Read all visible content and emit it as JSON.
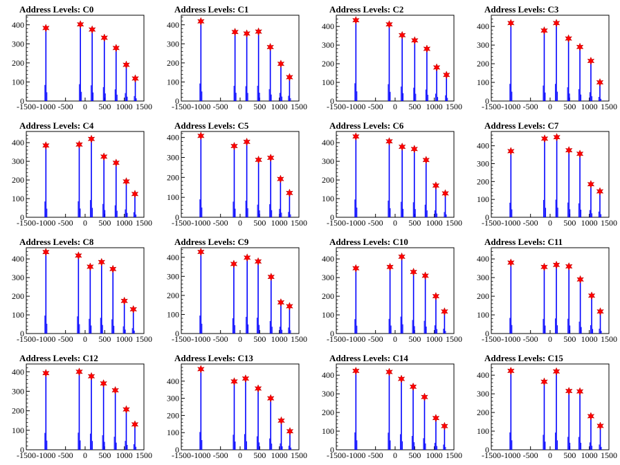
{
  "figure": {
    "title_prefix": "Address Levels: ",
    "x_ticks": [
      -1500,
      -1000,
      -500,
      0,
      500,
      1000,
      1500
    ],
    "x_tick_labels": [
      "-1500",
      "-1000",
      "-500",
      "0",
      "500",
      "1000",
      "1500"
    ],
    "colors": {
      "hist": "#0000ff",
      "peak_marker": "#ff0000",
      "axes": "#000000"
    }
  },
  "chart_data": [
    {
      "type": "histogram",
      "title": "Address Levels: C0",
      "xlim": [
        -1500,
        1500
      ],
      "ylim": [
        0,
        450
      ],
      "y_ticks": [
        0,
        100,
        200,
        300,
        400
      ],
      "peaks": [
        {
          "x": -1000,
          "y": 383
        },
        {
          "x": -120,
          "y": 402
        },
        {
          "x": 180,
          "y": 375
        },
        {
          "x": 490,
          "y": 332
        },
        {
          "x": 790,
          "y": 278
        },
        {
          "x": 1050,
          "y": 190
        },
        {
          "x": 1280,
          "y": 118
        }
      ]
    },
    {
      "type": "histogram",
      "title": "Address Levels: C1",
      "xlim": [
        -1500,
        1500
      ],
      "ylim": [
        0,
        450
      ],
      "y_ticks": [
        0,
        100,
        200,
        300,
        400
      ],
      "peaks": [
        {
          "x": -1000,
          "y": 418
        },
        {
          "x": -130,
          "y": 362
        },
        {
          "x": 170,
          "y": 354
        },
        {
          "x": 470,
          "y": 364
        },
        {
          "x": 770,
          "y": 283
        },
        {
          "x": 1040,
          "y": 195
        },
        {
          "x": 1260,
          "y": 125
        }
      ]
    },
    {
      "type": "histogram",
      "title": "Address Levels: C2",
      "xlim": [
        -1500,
        1500
      ],
      "ylim": [
        0,
        460
      ],
      "y_ticks": [
        0,
        100,
        200,
        300,
        400
      ],
      "peaks": [
        {
          "x": -1000,
          "y": 433
        },
        {
          "x": -150,
          "y": 411
        },
        {
          "x": 180,
          "y": 353
        },
        {
          "x": 500,
          "y": 325
        },
        {
          "x": 810,
          "y": 280
        },
        {
          "x": 1060,
          "y": 180
        },
        {
          "x": 1310,
          "y": 140
        }
      ]
    },
    {
      "type": "histogram",
      "title": "Address Levels: C3",
      "xlim": [
        -1500,
        1500
      ],
      "ylim": [
        0,
        460
      ],
      "y_ticks": [
        0,
        100,
        200,
        300,
        400
      ],
      "peaks": [
        {
          "x": -1000,
          "y": 418
        },
        {
          "x": -150,
          "y": 378
        },
        {
          "x": 160,
          "y": 418
        },
        {
          "x": 470,
          "y": 335
        },
        {
          "x": 760,
          "y": 290
        },
        {
          "x": 1040,
          "y": 215
        },
        {
          "x": 1270,
          "y": 100
        }
      ]
    },
    {
      "type": "histogram",
      "title": "Address Levels: C4",
      "xlim": [
        -1500,
        1500
      ],
      "ylim": [
        0,
        460
      ],
      "y_ticks": [
        0,
        100,
        200,
        300,
        400
      ],
      "peaks": [
        {
          "x": -1000,
          "y": 385
        },
        {
          "x": -150,
          "y": 390
        },
        {
          "x": 160,
          "y": 420
        },
        {
          "x": 480,
          "y": 325
        },
        {
          "x": 790,
          "y": 292
        },
        {
          "x": 1050,
          "y": 192
        },
        {
          "x": 1270,
          "y": 125
        }
      ]
    },
    {
      "type": "histogram",
      "title": "Address Levels: C5",
      "xlim": [
        -1500,
        1500
      ],
      "ylim": [
        0,
        430
      ],
      "y_ticks": [
        0,
        100,
        200,
        300,
        400
      ],
      "peaks": [
        {
          "x": -1000,
          "y": 408
        },
        {
          "x": -150,
          "y": 357
        },
        {
          "x": 170,
          "y": 378
        },
        {
          "x": 470,
          "y": 288
        },
        {
          "x": 780,
          "y": 298
        },
        {
          "x": 1030,
          "y": 192
        },
        {
          "x": 1260,
          "y": 122
        }
      ]
    },
    {
      "type": "histogram",
      "title": "Address Levels: C6",
      "xlim": [
        -1500,
        1500
      ],
      "ylim": [
        0,
        460
      ],
      "y_ticks": [
        0,
        100,
        200,
        300,
        400
      ],
      "peaks": [
        {
          "x": -1000,
          "y": 433
        },
        {
          "x": -150,
          "y": 407
        },
        {
          "x": 180,
          "y": 378
        },
        {
          "x": 490,
          "y": 366
        },
        {
          "x": 790,
          "y": 307
        },
        {
          "x": 1040,
          "y": 170
        },
        {
          "x": 1280,
          "y": 128
        }
      ]
    },
    {
      "type": "histogram",
      "title": "Address Levels: C7",
      "xlim": [
        -1500,
        1500
      ],
      "ylim": [
        0,
        480
      ],
      "y_ticks": [
        0,
        100,
        200,
        300,
        400
      ],
      "peaks": [
        {
          "x": -1000,
          "y": 370
        },
        {
          "x": -140,
          "y": 440
        },
        {
          "x": 170,
          "y": 448
        },
        {
          "x": 480,
          "y": 375
        },
        {
          "x": 760,
          "y": 355
        },
        {
          "x": 1040,
          "y": 185
        },
        {
          "x": 1270,
          "y": 145
        }
      ]
    },
    {
      "type": "histogram",
      "title": "Address Levels: C8",
      "xlim": [
        -1500,
        1500
      ],
      "ylim": [
        0,
        460
      ],
      "y_ticks": [
        0,
        100,
        200,
        300,
        400
      ],
      "peaks": [
        {
          "x": -1000,
          "y": 437
        },
        {
          "x": -170,
          "y": 418
        },
        {
          "x": 130,
          "y": 358
        },
        {
          "x": 420,
          "y": 383
        },
        {
          "x": 710,
          "y": 346
        },
        {
          "x": 1000,
          "y": 175
        },
        {
          "x": 1230,
          "y": 130
        }
      ]
    },
    {
      "type": "histogram",
      "title": "Address Levels: C9",
      "xlim": [
        -1500,
        1500
      ],
      "ylim": [
        0,
        450
      ],
      "y_ticks": [
        0,
        100,
        200,
        300,
        400
      ],
      "peaks": [
        {
          "x": -1000,
          "y": 428
        },
        {
          "x": -160,
          "y": 365
        },
        {
          "x": 180,
          "y": 398
        },
        {
          "x": 460,
          "y": 378
        },
        {
          "x": 790,
          "y": 297
        },
        {
          "x": 1040,
          "y": 163
        },
        {
          "x": 1260,
          "y": 143
        }
      ]
    },
    {
      "type": "histogram",
      "title": "Address Levels: C10",
      "xlim": [
        -1500,
        1500
      ],
      "ylim": [
        0,
        460
      ],
      "y_ticks": [
        0,
        100,
        200,
        300,
        400
      ],
      "peaks": [
        {
          "x": -1000,
          "y": 350
        },
        {
          "x": -130,
          "y": 357
        },
        {
          "x": 170,
          "y": 412
        },
        {
          "x": 470,
          "y": 330
        },
        {
          "x": 770,
          "y": 310
        },
        {
          "x": 1040,
          "y": 200
        },
        {
          "x": 1260,
          "y": 118
        }
      ]
    },
    {
      "type": "histogram",
      "title": "Address Levels: C11",
      "xlim": [
        -1500,
        1500
      ],
      "ylim": [
        0,
        460
      ],
      "y_ticks": [
        0,
        100,
        200,
        300,
        400
      ],
      "peaks": [
        {
          "x": -1000,
          "y": 380
        },
        {
          "x": -150,
          "y": 357
        },
        {
          "x": 160,
          "y": 368
        },
        {
          "x": 480,
          "y": 360
        },
        {
          "x": 770,
          "y": 290
        },
        {
          "x": 1060,
          "y": 203
        },
        {
          "x": 1280,
          "y": 118
        }
      ]
    },
    {
      "type": "histogram",
      "title": "Address Levels: C12",
      "xlim": [
        -1500,
        1500
      ],
      "ylim": [
        0,
        440
      ],
      "y_ticks": [
        0,
        100,
        200,
        300,
        400
      ],
      "peaks": [
        {
          "x": -1000,
          "y": 393
        },
        {
          "x": -150,
          "y": 400
        },
        {
          "x": 160,
          "y": 377
        },
        {
          "x": 470,
          "y": 340
        },
        {
          "x": 770,
          "y": 305
        },
        {
          "x": 1050,
          "y": 207
        },
        {
          "x": 1270,
          "y": 130
        }
      ]
    },
    {
      "type": "histogram",
      "title": "Address Levels: C13",
      "xlim": [
        -1500,
        1500
      ],
      "ylim": [
        0,
        500
      ],
      "y_ticks": [
        0,
        100,
        200,
        300,
        400
      ],
      "peaks": [
        {
          "x": -1000,
          "y": 470
        },
        {
          "x": -150,
          "y": 398
        },
        {
          "x": 140,
          "y": 415
        },
        {
          "x": 460,
          "y": 357
        },
        {
          "x": 780,
          "y": 300
        },
        {
          "x": 1050,
          "y": 170
        },
        {
          "x": 1270,
          "y": 108
        }
      ]
    },
    {
      "type": "histogram",
      "title": "Address Levels: C14",
      "xlim": [
        -1500,
        1500
      ],
      "ylim": [
        0,
        460
      ],
      "y_ticks": [
        0,
        100,
        200,
        300,
        400
      ],
      "peaks": [
        {
          "x": -1000,
          "y": 423
        },
        {
          "x": -150,
          "y": 417
        },
        {
          "x": 160,
          "y": 380
        },
        {
          "x": 460,
          "y": 338
        },
        {
          "x": 750,
          "y": 283
        },
        {
          "x": 1040,
          "y": 170
        },
        {
          "x": 1260,
          "y": 127
        }
      ]
    },
    {
      "type": "histogram",
      "title": "Address Levels: C15",
      "xlim": [
        -1500,
        1500
      ],
      "ylim": [
        0,
        460
      ],
      "y_ticks": [
        0,
        100,
        200,
        300,
        400
      ],
      "peaks": [
        {
          "x": -1000,
          "y": 423
        },
        {
          "x": -150,
          "y": 365
        },
        {
          "x": 160,
          "y": 420
        },
        {
          "x": 480,
          "y": 315
        },
        {
          "x": 760,
          "y": 313
        },
        {
          "x": 1040,
          "y": 180
        },
        {
          "x": 1280,
          "y": 128
        }
      ]
    }
  ]
}
